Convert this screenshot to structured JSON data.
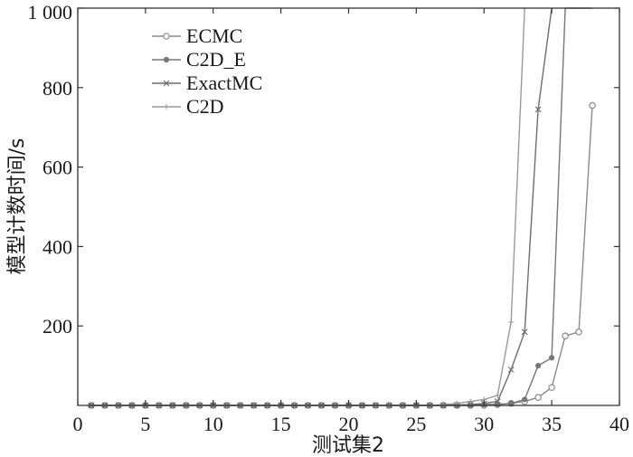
{
  "chart_data": {
    "type": "line",
    "title": "",
    "xlabel": "测试集2",
    "ylabel": "模型计数时间/s",
    "xlim": [
      0,
      40
    ],
    "ylim": [
      0,
      1000
    ],
    "x_ticks": [
      "0",
      "5",
      "10",
      "15",
      "20",
      "25",
      "30",
      "35",
      "40"
    ],
    "y_ticks": [
      "200",
      "400",
      "600",
      "800",
      "1 000"
    ],
    "grid": false,
    "legend_position": "top-left",
    "series": [
      {
        "name": "ECMC",
        "marker": "circle",
        "color": "#8a8a8a",
        "x": [
          1,
          2,
          3,
          4,
          5,
          6,
          7,
          8,
          9,
          10,
          11,
          12,
          13,
          14,
          15,
          16,
          17,
          18,
          19,
          20,
          21,
          22,
          23,
          24,
          25,
          26,
          27,
          28,
          29,
          30,
          31,
          32,
          33,
          34,
          35,
          36,
          37,
          38
        ],
        "y": [
          0,
          0,
          0,
          0,
          0,
          0,
          0,
          0,
          0,
          0,
          0,
          0,
          0,
          0,
          0,
          0,
          0,
          0,
          0,
          0,
          0,
          0,
          0,
          0,
          0,
          0,
          0,
          0,
          0,
          0,
          2,
          5,
          10,
          20,
          45,
          175,
          185,
          755
        ]
      },
      {
        "name": "C2D_E",
        "marker": "dot",
        "color": "#777777",
        "x": [
          1,
          2,
          3,
          4,
          5,
          6,
          7,
          8,
          9,
          10,
          11,
          12,
          13,
          14,
          15,
          16,
          17,
          18,
          19,
          20,
          21,
          22,
          23,
          24,
          25,
          26,
          27,
          28,
          29,
          30,
          31,
          32,
          33,
          34,
          35,
          36,
          37,
          38
        ],
        "y": [
          0,
          0,
          0,
          0,
          0,
          0,
          0,
          0,
          0,
          0,
          0,
          0,
          0,
          0,
          0,
          0,
          0,
          0,
          0,
          0,
          0,
          0,
          0,
          0,
          0,
          0,
          0,
          0,
          1,
          2,
          3,
          5,
          15,
          100,
          120,
          1000,
          1000,
          1000
        ]
      },
      {
        "name": "ExactMC",
        "marker": "x",
        "color": "#6e6e6e",
        "x": [
          1,
          2,
          3,
          4,
          5,
          6,
          7,
          8,
          9,
          10,
          11,
          12,
          13,
          14,
          15,
          16,
          17,
          18,
          19,
          20,
          21,
          22,
          23,
          24,
          25,
          26,
          27,
          28,
          29,
          30,
          31,
          32,
          33,
          34,
          35
        ],
        "y": [
          0,
          0,
          0,
          0,
          0,
          0,
          0,
          0,
          0,
          0,
          0,
          0,
          0,
          0,
          0,
          0,
          0,
          0,
          0,
          0,
          0,
          0,
          0,
          0,
          0,
          0,
          0,
          1,
          2,
          5,
          10,
          90,
          185,
          745,
          1000
        ]
      },
      {
        "name": "C2D",
        "marker": "plus",
        "color": "#9a9a9a",
        "x": [
          1,
          2,
          3,
          4,
          5,
          6,
          7,
          8,
          9,
          10,
          11,
          12,
          13,
          14,
          15,
          16,
          17,
          18,
          19,
          20,
          21,
          22,
          23,
          24,
          25,
          26,
          27,
          28,
          29,
          30,
          31,
          32,
          33
        ],
        "y": [
          0,
          0,
          0,
          0,
          0,
          0,
          0,
          0,
          0,
          0,
          0,
          0,
          0,
          0,
          0,
          0,
          0,
          0,
          0,
          0,
          0,
          0,
          0,
          0,
          0,
          0,
          2,
          5,
          10,
          15,
          25,
          210,
          1000
        ]
      }
    ]
  }
}
